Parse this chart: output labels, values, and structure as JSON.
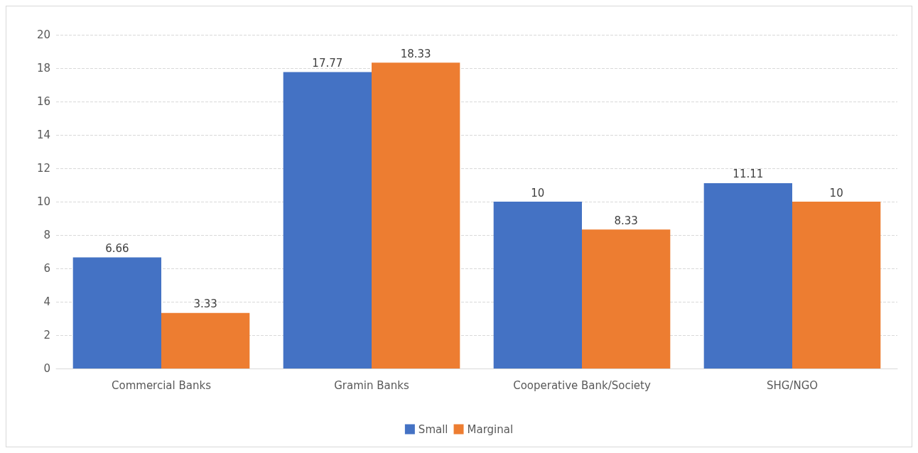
{
  "chart_data": {
    "type": "bar",
    "categories": [
      "Commercial Banks",
      "Gramin Banks",
      "Cooperative Bank/Society",
      "SHG/NGO"
    ],
    "series": [
      {
        "name": "Small",
        "color": "#4472c4",
        "values": [
          6.66,
          17.77,
          10,
          11.11
        ]
      },
      {
        "name": "Marginal",
        "color": "#ed7d31",
        "values": [
          3.33,
          18.33,
          8.33,
          10
        ]
      }
    ],
    "ylim": [
      0,
      20
    ],
    "yticks": [
      0,
      2,
      4,
      6,
      8,
      10,
      12,
      14,
      16,
      18,
      20
    ],
    "grid": "y",
    "legend": "bottom",
    "data_labels": true
  }
}
